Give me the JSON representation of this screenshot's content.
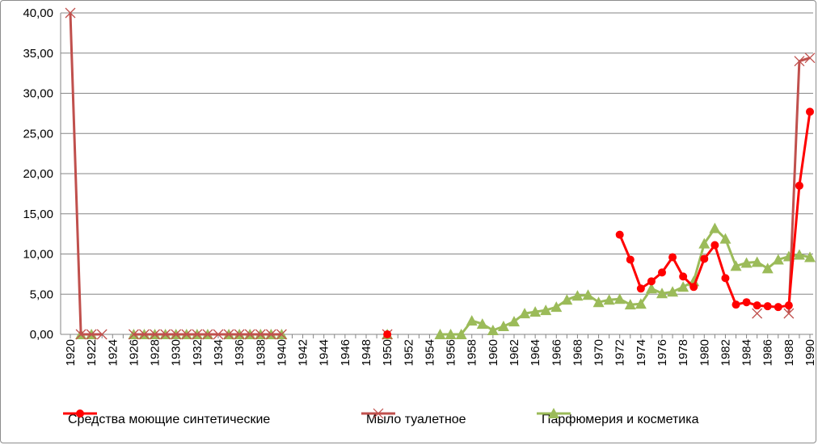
{
  "chart_data": {
    "type": "line",
    "ylim": [
      0,
      40
    ],
    "y_ticks": [
      "0,00",
      "5,00",
      "10,00",
      "15,00",
      "20,00",
      "25,00",
      "30,00",
      "35,00",
      "40,00"
    ],
    "x_tick_labels": [
      "1920",
      "1922",
      "1924",
      "1926",
      "1928",
      "1930",
      "1932",
      "1934",
      "1936",
      "1938",
      "1940",
      "1942",
      "1944",
      "1946",
      "1948",
      "1950",
      "1952",
      "1954",
      "1956",
      "1958",
      "1960",
      "1962",
      "1964",
      "1966",
      "1968",
      "1970",
      "1972",
      "1974",
      "1976",
      "1978",
      "1980",
      "1982",
      "1984",
      "1986",
      "1988",
      "1990"
    ],
    "x_range": [
      1920,
      1990
    ],
    "grid": "horizontal",
    "legend_position": "bottom",
    "series": [
      {
        "name": "Средства моющие синтетические",
        "color": "#ff0000",
        "marker": "circle",
        "segments": [
          [
            [
              1950,
              0.0
            ]
          ],
          [
            [
              1972,
              12.4
            ],
            [
              1973,
              9.3
            ],
            [
              1974,
              5.7
            ],
            [
              1975,
              6.6
            ],
            [
              1976,
              7.7
            ],
            [
              1977,
              9.6
            ],
            [
              1978,
              7.2
            ],
            [
              1979,
              5.9
            ],
            [
              1980,
              9.4
            ],
            [
              1981,
              11.1
            ],
            [
              1982,
              7.0
            ],
            [
              1983,
              3.7
            ],
            [
              1984,
              4.0
            ],
            [
              1985,
              3.6
            ],
            [
              1986,
              3.5
            ],
            [
              1987,
              3.4
            ],
            [
              1988,
              3.6
            ],
            [
              1989,
              18.5
            ],
            [
              1990,
              27.7
            ]
          ]
        ]
      },
      {
        "name": "Мыло туалетное",
        "color": "#c0504d",
        "marker": "x",
        "segments": [
          [
            [
              1920,
              40.0
            ],
            [
              1921,
              0.0
            ],
            [
              1922,
              0.0
            ],
            [
              1923,
              0.0
            ]
          ],
          [
            [
              1926,
              0.0
            ],
            [
              1927,
              0.0
            ],
            [
              1928,
              0.0
            ],
            [
              1929,
              0.0
            ],
            [
              1930,
              0.0
            ],
            [
              1931,
              0.0
            ],
            [
              1932,
              0.0
            ],
            [
              1933,
              0.0
            ],
            [
              1934,
              0.0
            ],
            [
              1935,
              0.0
            ],
            [
              1936,
              0.0
            ],
            [
              1937,
              0.0
            ],
            [
              1938,
              0.0
            ],
            [
              1939,
              0.0
            ],
            [
              1940,
              0.0
            ]
          ],
          [
            [
              1950,
              0.0
            ]
          ],
          [
            [
              1985,
              2.6
            ]
          ],
          [
            [
              1988,
              2.6
            ],
            [
              1989,
              34.0
            ],
            [
              1990,
              34.4
            ]
          ]
        ]
      },
      {
        "name": "Парфюмерия и косметика",
        "color": "#9bbb59",
        "marker": "triangle",
        "segments": [
          [
            [
              1921,
              0.0
            ],
            [
              1922,
              0.0
            ]
          ],
          [
            [
              1926,
              0.0
            ],
            [
              1927,
              0.0
            ],
            [
              1928,
              0.0
            ],
            [
              1929,
              0.0
            ],
            [
              1930,
              0.0
            ],
            [
              1931,
              0.0
            ],
            [
              1932,
              0.0
            ],
            [
              1933,
              0.0
            ]
          ],
          [
            [
              1935,
              0.0
            ],
            [
              1936,
              0.0
            ],
            [
              1937,
              0.0
            ],
            [
              1938,
              0.0
            ],
            [
              1939,
              0.0
            ],
            [
              1940,
              0.0
            ]
          ],
          [
            [
              1950,
              0.0
            ]
          ],
          [
            [
              1955,
              0.0
            ],
            [
              1956,
              0.0
            ],
            [
              1957,
              0.0
            ],
            [
              1958,
              1.7
            ],
            [
              1959,
              1.3
            ],
            [
              1960,
              0.5
            ],
            [
              1961,
              1.0
            ],
            [
              1962,
              1.6
            ],
            [
              1963,
              2.6
            ],
            [
              1964,
              2.8
            ],
            [
              1965,
              3.0
            ],
            [
              1966,
              3.4
            ],
            [
              1967,
              4.3
            ],
            [
              1968,
              4.8
            ],
            [
              1969,
              4.9
            ],
            [
              1970,
              4.0
            ],
            [
              1971,
              4.3
            ],
            [
              1972,
              4.4
            ],
            [
              1973,
              3.7
            ],
            [
              1974,
              3.8
            ],
            [
              1975,
              5.7
            ],
            [
              1976,
              5.1
            ],
            [
              1977,
              5.3
            ],
            [
              1978,
              5.9
            ],
            [
              1979,
              6.6
            ],
            [
              1980,
              11.3
            ],
            [
              1981,
              13.2
            ],
            [
              1982,
              11.9
            ],
            [
              1983,
              8.5
            ],
            [
              1984,
              8.9
            ],
            [
              1985,
              9.0
            ],
            [
              1986,
              8.2
            ],
            [
              1987,
              9.3
            ],
            [
              1988,
              9.7
            ],
            [
              1989,
              9.9
            ],
            [
              1990,
              9.6
            ]
          ]
        ]
      }
    ]
  }
}
